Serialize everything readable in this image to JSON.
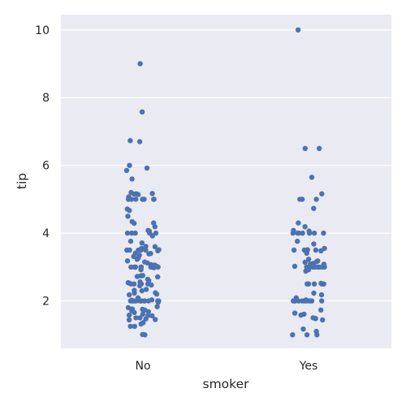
{
  "chart_data": {
    "type": "scatter",
    "subtype": "strip",
    "title": "",
    "xlabel": "smoker",
    "ylabel": "tip",
    "categories": [
      "No",
      "Yes"
    ],
    "ylim": [
      0.6,
      10.45
    ],
    "yticks": [
      2,
      4,
      6,
      8,
      10
    ],
    "grid": true,
    "legend": "none",
    "colors": {
      "background": "#eaeaf2",
      "grid": "#ffffff",
      "point": "#4c72b0",
      "text": "#262626"
    },
    "series": [
      {
        "category": "No",
        "values": [
          1.01,
          1.0,
          1.25,
          1.25,
          1.32,
          1.36,
          1.44,
          1.45,
          1.47,
          1.5,
          1.5,
          1.56,
          1.57,
          1.58,
          1.61,
          1.66,
          1.68,
          1.71,
          1.73,
          1.75,
          1.76,
          1.8,
          1.83,
          1.96,
          2.0,
          2.0,
          2.0,
          2.0,
          2.0,
          2.0,
          2.0,
          2.0,
          2.0,
          2.0,
          2.0,
          2.0,
          2.0,
          2.01,
          2.02,
          2.03,
          2.05,
          2.09,
          2.18,
          2.2,
          2.23,
          2.24,
          2.3,
          2.31,
          2.34,
          2.45,
          2.47,
          2.5,
          2.5,
          2.5,
          2.5,
          2.52,
          2.54,
          2.56,
          2.6,
          2.64,
          2.71,
          2.72,
          2.74,
          2.75,
          2.92,
          2.98,
          3.0,
          3.0,
          3.0,
          3.0,
          3.0,
          3.0,
          3.0,
          3.0,
          3.0,
          3.0,
          3.02,
          3.06,
          3.07,
          3.12,
          3.15,
          3.18,
          3.23,
          3.27,
          3.31,
          3.35,
          3.39,
          3.4,
          3.41,
          3.48,
          3.5,
          3.5,
          3.5,
          3.5,
          3.5,
          3.51,
          3.55,
          3.6,
          3.61,
          3.71,
          3.76,
          3.92,
          4.0,
          4.0,
          4.0,
          4.0,
          4.0,
          4.06,
          4.08,
          4.19,
          4.29,
          4.3,
          4.34,
          4.5,
          4.67,
          4.71,
          5.0,
          5.0,
          5.0,
          5.0,
          5.0,
          5.0,
          5.0,
          5.0,
          5.07,
          5.14,
          5.15,
          5.16,
          5.17,
          5.2,
          5.6,
          5.85,
          5.92,
          6.0,
          6.7,
          6.73,
          7.58,
          9.0
        ]
      },
      {
        "category": "Yes",
        "values": [
          1.0,
          1.0,
          1.0,
          1.1,
          1.17,
          1.44,
          1.48,
          1.5,
          1.58,
          1.61,
          1.64,
          1.73,
          2.0,
          2.0,
          2.0,
          2.0,
          2.0,
          2.0,
          2.0,
          2.0,
          2.0,
          2.0,
          2.0,
          2.03,
          2.09,
          2.18,
          2.23,
          2.5,
          2.5,
          2.5,
          2.5,
          2.5,
          2.52,
          2.88,
          2.92,
          3.0,
          3.0,
          3.0,
          3.0,
          3.0,
          3.0,
          3.0,
          3.0,
          3.02,
          3.08,
          3.09,
          3.11,
          3.14,
          3.16,
          3.18,
          3.23,
          3.41,
          3.48,
          3.5,
          3.5,
          3.5,
          3.51,
          3.55,
          3.68,
          3.76,
          4.0,
          4.0,
          4.0,
          4.0,
          4.0,
          4.0,
          4.0,
          4.06,
          4.08,
          4.19,
          4.3,
          4.73,
          5.0,
          5.0,
          5.0,
          5.16,
          5.65,
          6.5,
          6.5,
          10.0
        ]
      }
    ]
  }
}
